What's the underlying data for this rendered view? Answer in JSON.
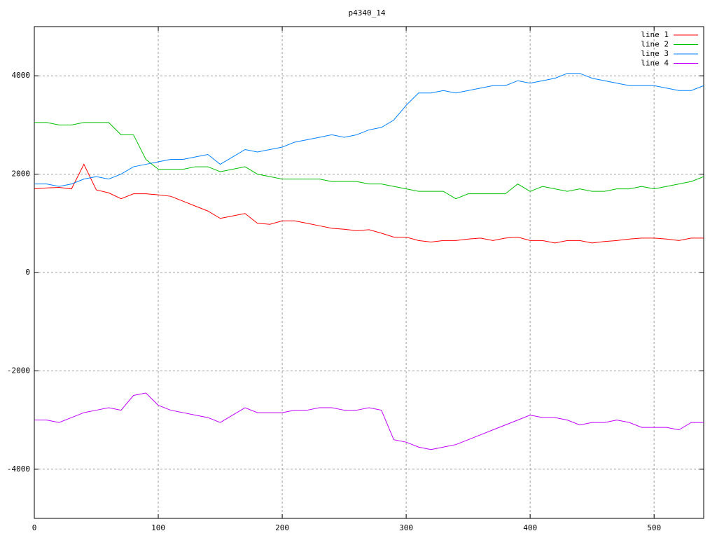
{
  "chart_data": {
    "type": "line",
    "title": "p4340_14",
    "x": [
      0,
      10,
      20,
      30,
      40,
      50,
      60,
      70,
      80,
      90,
      100,
      110,
      120,
      130,
      140,
      150,
      160,
      170,
      180,
      190,
      200,
      210,
      220,
      230,
      240,
      250,
      260,
      270,
      280,
      290,
      300,
      310,
      320,
      330,
      340,
      350,
      360,
      370,
      380,
      390,
      400,
      410,
      420,
      430,
      440,
      450,
      460,
      470,
      480,
      490,
      500,
      510,
      520,
      530,
      540
    ],
    "series": [
      {
        "name": "line 1",
        "color": "#ff0000",
        "values": [
          1700,
          1720,
          1730,
          1700,
          2200,
          1680,
          1620,
          1500,
          1600,
          1600,
          1580,
          1550,
          1450,
          1350,
          1250,
          1100,
          1150,
          1200,
          1000,
          980,
          1050,
          1050,
          1000,
          950,
          900,
          880,
          850,
          870,
          800,
          720,
          720,
          650,
          620,
          650,
          650,
          680,
          700,
          650,
          700,
          720,
          650,
          650,
          600,
          650,
          650,
          600,
          630,
          650,
          680,
          700,
          700,
          680,
          650,
          700,
          700
        ]
      },
      {
        "name": "line 2",
        "color": "#00c000",
        "values": [
          3050,
          3050,
          3000,
          3000,
          3050,
          3050,
          3050,
          2800,
          2800,
          2300,
          2100,
          2100,
          2100,
          2150,
          2150,
          2050,
          2100,
          2150,
          2000,
          1950,
          1900,
          1900,
          1900,
          1900,
          1850,
          1850,
          1850,
          1800,
          1800,
          1750,
          1700,
          1650,
          1650,
          1650,
          1500,
          1600,
          1600,
          1600,
          1600,
          1800,
          1650,
          1750,
          1700,
          1650,
          1700,
          1650,
          1650,
          1700,
          1700,
          1750,
          1700,
          1750,
          1800,
          1850,
          1950
        ]
      },
      {
        "name": "line 3",
        "color": "#0080ff",
        "values": [
          1800,
          1800,
          1750,
          1800,
          1900,
          1950,
          1900,
          2000,
          2150,
          2200,
          2250,
          2300,
          2300,
          2350,
          2400,
          2200,
          2350,
          2500,
          2450,
          2500,
          2550,
          2650,
          2700,
          2750,
          2800,
          2750,
          2800,
          2900,
          2950,
          3100,
          3400,
          3650,
          3650,
          3700,
          3650,
          3700,
          3750,
          3800,
          3800,
          3900,
          3850,
          3900,
          3950,
          4050,
          4050,
          3950,
          3900,
          3850,
          3800,
          3800,
          3800,
          3750,
          3700,
          3700,
          3800
        ]
      },
      {
        "name": "line 4",
        "color": "#c000ff",
        "values": [
          -3000,
          -3000,
          -3050,
          -2950,
          -2850,
          -2800,
          -2750,
          -2800,
          -2500,
          -2450,
          -2700,
          -2800,
          -2850,
          -2900,
          -2950,
          -3050,
          -2900,
          -2750,
          -2850,
          -2850,
          -2850,
          -2800,
          -2800,
          -2750,
          -2750,
          -2800,
          -2800,
          -2750,
          -2800,
          -3400,
          -3450,
          -3550,
          -3600,
          -3550,
          -3500,
          -3400,
          -3300,
          -3200,
          -3100,
          -3000,
          -2900,
          -2950,
          -2950,
          -3000,
          -3100,
          -3050,
          -3050,
          -3000,
          -3050,
          -3150,
          -3150,
          -3150,
          -3200,
          -3050,
          -3050
        ]
      }
    ],
    "xlim": [
      0,
      540
    ],
    "xticks": [
      0,
      100,
      200,
      300,
      400,
      500
    ],
    "ylim": [
      -5000,
      5000
    ],
    "yticks": [
      -4000,
      -2000,
      0,
      2000,
      4000
    ],
    "grid": true,
    "legend": "top-right"
  }
}
